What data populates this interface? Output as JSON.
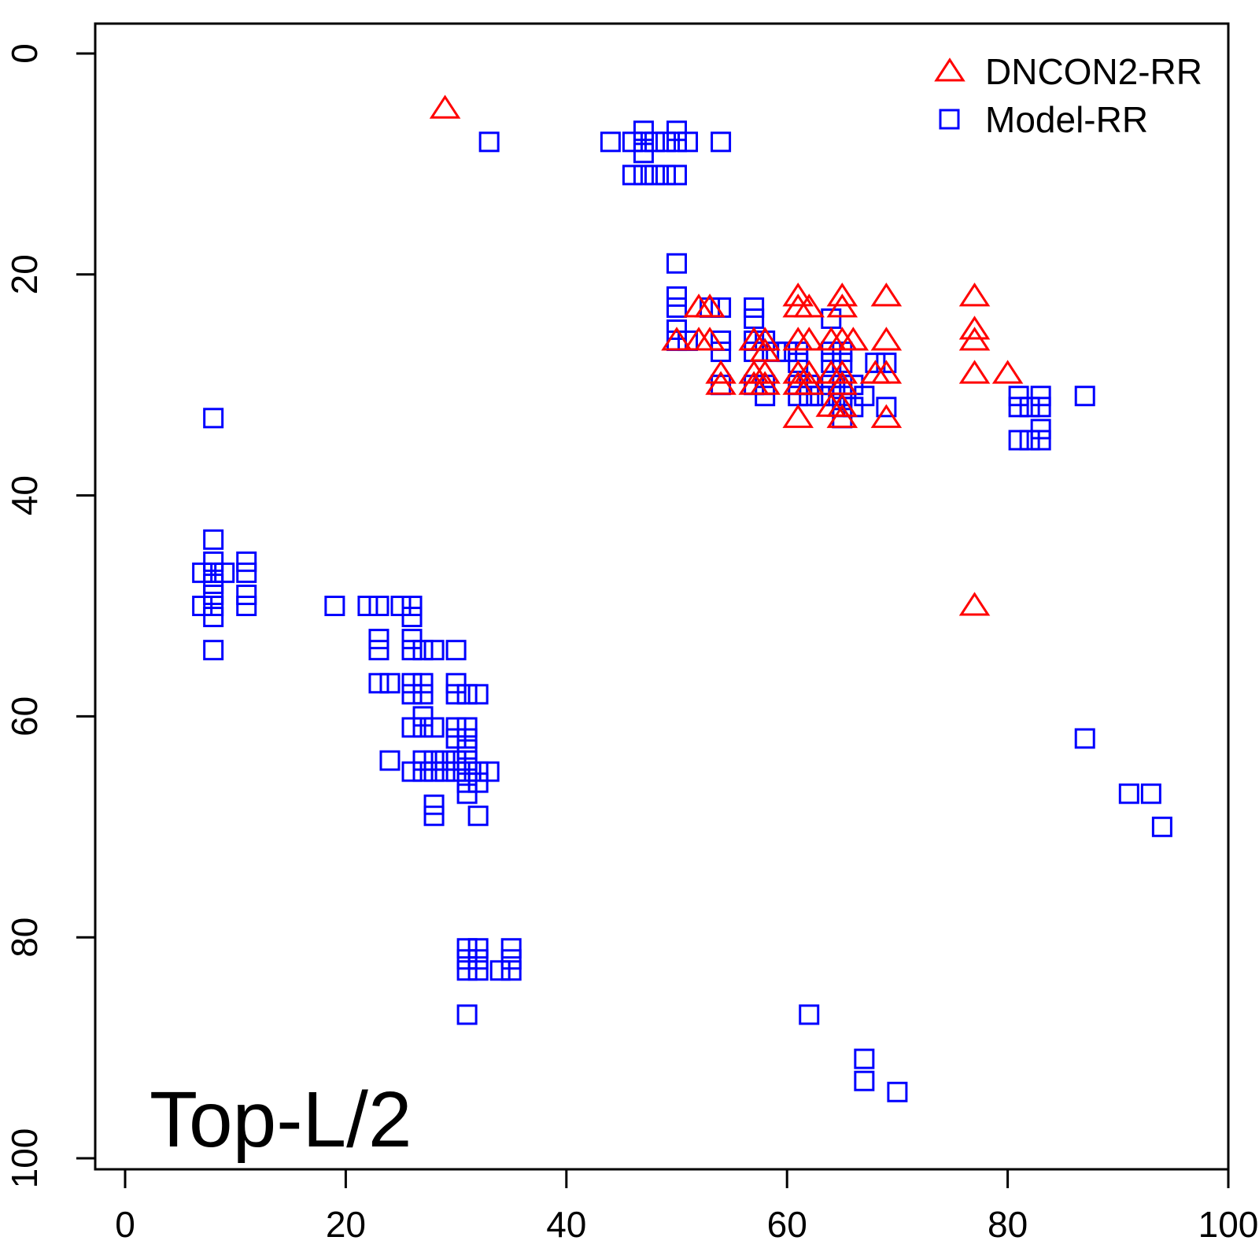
{
  "chart_data": {
    "type": "scatter",
    "title": "",
    "xlabel": "",
    "ylabel": "",
    "xlim": [
      -3,
      100
    ],
    "ylim": [
      100,
      -3
    ],
    "y_reversed": true,
    "x_ticks": [
      0,
      20,
      40,
      60,
      80,
      100
    ],
    "y_ticks": [
      0,
      20,
      40,
      60,
      80,
      100
    ],
    "x_tick_labels": [
      "0",
      "20",
      "40",
      "60",
      "80",
      "100"
    ],
    "y_tick_labels": [
      "0",
      "20",
      "40",
      "60",
      "80",
      "100"
    ],
    "annotation": "Top-L/2",
    "legend_position": "top-right",
    "grid": false,
    "series": [
      {
        "name": "DNCON2-RR",
        "marker": "triangle",
        "color": "#ff0000",
        "points": [
          [
            29,
            5
          ],
          [
            50,
            26
          ],
          [
            52,
            23
          ],
          [
            53,
            23
          ],
          [
            52,
            26
          ],
          [
            53,
            26
          ],
          [
            54,
            29
          ],
          [
            54,
            30
          ],
          [
            57,
            26
          ],
          [
            57,
            29
          ],
          [
            57,
            30
          ],
          [
            58,
            26
          ],
          [
            58,
            27
          ],
          [
            58,
            29
          ],
          [
            58,
            30
          ],
          [
            61,
            22
          ],
          [
            61,
            23
          ],
          [
            61,
            26
          ],
          [
            61,
            29
          ],
          [
            61,
            30
          ],
          [
            61,
            33
          ],
          [
            62,
            23
          ],
          [
            62,
            26
          ],
          [
            62,
            29
          ],
          [
            62,
            30
          ],
          [
            64,
            26
          ],
          [
            64,
            29
          ],
          [
            64,
            32
          ],
          [
            65,
            22
          ],
          [
            65,
            23
          ],
          [
            65,
            26
          ],
          [
            65,
            29
          ],
          [
            65,
            30
          ],
          [
            65,
            32
          ],
          [
            65,
            33
          ],
          [
            66,
            26
          ],
          [
            68,
            29
          ],
          [
            69,
            22
          ],
          [
            69,
            26
          ],
          [
            69,
            29
          ],
          [
            69,
            33
          ],
          [
            77,
            22
          ],
          [
            77,
            25
          ],
          [
            77,
            26
          ],
          [
            77,
            29
          ],
          [
            80,
            29
          ],
          [
            77,
            50
          ]
        ]
      },
      {
        "name": "Model-RR",
        "marker": "square",
        "color": "#0000ff",
        "points": [
          [
            33,
            8
          ],
          [
            44,
            8
          ],
          [
            46,
            8
          ],
          [
            47,
            7
          ],
          [
            47,
            8
          ],
          [
            47,
            9
          ],
          [
            48,
            8
          ],
          [
            49,
            8
          ],
          [
            50,
            7
          ],
          [
            50,
            8
          ],
          [
            51,
            8
          ],
          [
            54,
            8
          ],
          [
            46,
            11
          ],
          [
            47,
            11
          ],
          [
            48,
            11
          ],
          [
            49,
            11
          ],
          [
            50,
            11
          ],
          [
            50,
            19
          ],
          [
            50,
            22
          ],
          [
            50,
            23
          ],
          [
            50,
            25
          ],
          [
            50,
            26
          ],
          [
            51,
            26
          ],
          [
            53,
            23
          ],
          [
            54,
            23
          ],
          [
            54,
            26
          ],
          [
            54,
            27
          ],
          [
            54,
            30
          ],
          [
            57,
            23
          ],
          [
            57,
            24
          ],
          [
            57,
            26
          ],
          [
            57,
            27
          ],
          [
            57,
            30
          ],
          [
            58,
            26
          ],
          [
            58,
            30
          ],
          [
            58,
            31
          ],
          [
            59,
            27
          ],
          [
            60,
            27
          ],
          [
            61,
            27
          ],
          [
            61,
            28
          ],
          [
            61,
            30
          ],
          [
            61,
            31
          ],
          [
            62,
            30
          ],
          [
            62,
            31
          ],
          [
            63,
            31
          ],
          [
            64,
            24
          ],
          [
            64,
            27
          ],
          [
            64,
            28
          ],
          [
            64,
            30
          ],
          [
            64,
            31
          ],
          [
            65,
            27
          ],
          [
            65,
            28
          ],
          [
            65,
            30
          ],
          [
            65,
            31
          ],
          [
            65,
            32
          ],
          [
            65,
            33
          ],
          [
            66,
            30
          ],
          [
            66,
            32
          ],
          [
            67,
            31
          ],
          [
            68,
            28
          ],
          [
            69,
            28
          ],
          [
            69,
            32
          ],
          [
            81,
            31
          ],
          [
            81,
            32
          ],
          [
            81,
            35
          ],
          [
            82,
            32
          ],
          [
            82,
            35
          ],
          [
            83,
            31
          ],
          [
            83,
            32
          ],
          [
            83,
            34
          ],
          [
            83,
            35
          ],
          [
            87,
            31
          ],
          [
            8,
            33
          ],
          [
            8,
            44
          ],
          [
            8,
            46
          ],
          [
            8,
            47
          ],
          [
            8,
            48
          ],
          [
            8,
            49
          ],
          [
            8,
            50
          ],
          [
            8,
            51
          ],
          [
            8,
            54
          ],
          [
            7,
            47
          ],
          [
            7,
            50
          ],
          [
            9,
            47
          ],
          [
            11,
            46
          ],
          [
            11,
            47
          ],
          [
            11,
            49
          ],
          [
            11,
            50
          ],
          [
            19,
            50
          ],
          [
            22,
            50
          ],
          [
            23,
            50
          ],
          [
            25,
            50
          ],
          [
            23,
            53
          ],
          [
            23,
            54
          ],
          [
            23,
            57
          ],
          [
            24,
            57
          ],
          [
            26,
            50
          ],
          [
            26,
            51
          ],
          [
            26,
            53
          ],
          [
            26,
            54
          ],
          [
            26,
            57
          ],
          [
            26,
            58
          ],
          [
            26,
            61
          ],
          [
            26,
            65
          ],
          [
            27,
            54
          ],
          [
            27,
            57
          ],
          [
            27,
            58
          ],
          [
            27,
            60
          ],
          [
            27,
            61
          ],
          [
            27,
            64
          ],
          [
            27,
            65
          ],
          [
            28,
            54
          ],
          [
            28,
            61
          ],
          [
            28,
            64
          ],
          [
            28,
            65
          ],
          [
            28,
            68
          ],
          [
            28,
            69
          ],
          [
            29,
            64
          ],
          [
            29,
            65
          ],
          [
            24,
            64
          ],
          [
            30,
            54
          ],
          [
            30,
            57
          ],
          [
            30,
            58
          ],
          [
            30,
            61
          ],
          [
            30,
            62
          ],
          [
            30,
            64
          ],
          [
            30,
            65
          ],
          [
            31,
            58
          ],
          [
            31,
            61
          ],
          [
            31,
            62
          ],
          [
            31,
            63
          ],
          [
            31,
            64
          ],
          [
            31,
            65
          ],
          [
            31,
            66
          ],
          [
            31,
            67
          ],
          [
            32,
            58
          ],
          [
            32,
            65
          ],
          [
            32,
            66
          ],
          [
            32,
            69
          ],
          [
            33,
            65
          ],
          [
            31,
            81
          ],
          [
            31,
            82
          ],
          [
            31,
            83
          ],
          [
            32,
            81
          ],
          [
            32,
            82
          ],
          [
            32,
            83
          ],
          [
            34,
            83
          ],
          [
            35,
            81
          ],
          [
            35,
            82
          ],
          [
            35,
            83
          ],
          [
            31,
            87
          ],
          [
            87,
            62
          ],
          [
            91,
            67
          ],
          [
            93,
            67
          ],
          [
            94,
            70
          ],
          [
            62,
            87
          ],
          [
            67,
            91
          ],
          [
            67,
            93
          ],
          [
            70,
            94
          ]
        ]
      }
    ]
  }
}
